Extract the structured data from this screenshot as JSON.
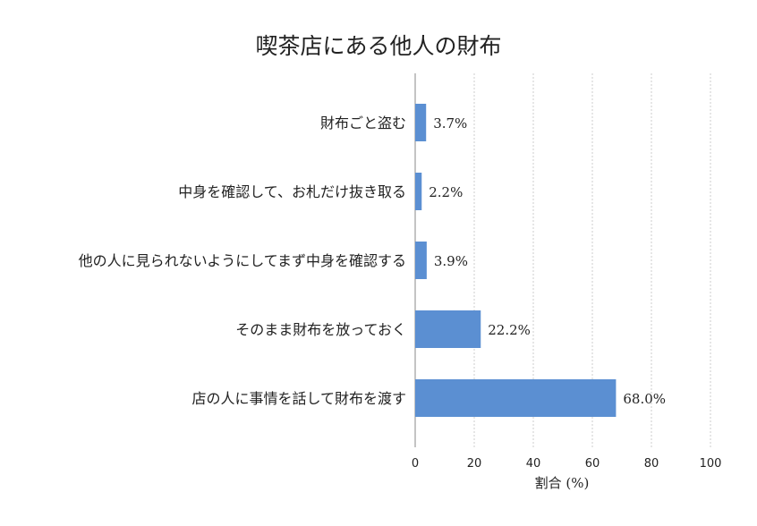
{
  "chart_data": {
    "type": "bar",
    "orientation": "horizontal",
    "title": "喫茶店にある他人の財布",
    "xlabel": "割合 (%)",
    "ylabel": "",
    "xlim": [
      0,
      100
    ],
    "xticks": [
      0,
      20,
      40,
      60,
      80,
      100
    ],
    "grid": true,
    "categories": [
      "財布ごと盗む",
      "中身を確認して、お札だけ抜き取る",
      "他の人に見られないようにしてまず中身を確認する",
      "そのまま財布を放っておく",
      "店の人に事情を話して財布を渡す"
    ],
    "values": [
      3.7,
      2.2,
      3.9,
      22.2,
      68.0
    ],
    "value_labels": [
      "3.7%",
      "2.2%",
      "3.9%",
      "22.2%",
      "68.0%"
    ],
    "colors": {
      "bar": "#5b8fd2"
    }
  }
}
